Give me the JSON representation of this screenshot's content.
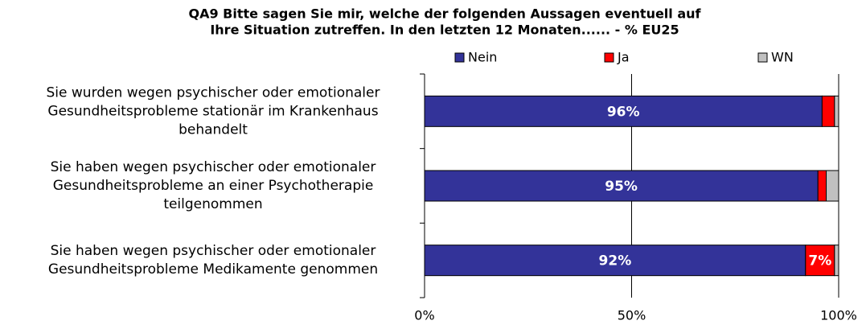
{
  "chart_data": {
    "type": "stacked_bar_horizontal_percent",
    "title": [
      "QA9 Bitte sagen Sie mir, welche der folgenden Aussagen eventuell auf",
      "Ihre Situation zutreffen. In den letzten 12 Monaten......  - % EU25"
    ],
    "categories": [
      [
        "Sie wurden wegen psychischer oder emotionaler",
        "Gesundheitsprobleme stationär im Krankenhaus",
        "behandelt"
      ],
      [
        "Sie haben wegen psychischer oder emotionaler",
        "Gesundheitsprobleme an einer Psychotherapie",
        "teilgenommen"
      ],
      [
        "Sie haben wegen psychischer oder emotionaler",
        "Gesundheitsprobleme Medikamente genommen"
      ]
    ],
    "series": [
      {
        "name": "Nein",
        "color": "#333399",
        "values": [
          96,
          95,
          92
        ],
        "value_labels": [
          "96%",
          "95%",
          "92%"
        ]
      },
      {
        "name": "Ja",
        "color": "#ff0000",
        "values": [
          3,
          2,
          7
        ],
        "value_labels": [
          null,
          null,
          "7%"
        ]
      },
      {
        "name": "WN",
        "color": "#c0c0c0",
        "values": [
          1,
          3,
          1
        ]
      }
    ],
    "xlim": [
      0,
      100
    ],
    "xticks": [
      {
        "value": 0,
        "label": "0%"
      },
      {
        "value": 50,
        "label": "50%"
      },
      {
        "value": 100,
        "label": "100%"
      }
    ],
    "grid": true,
    "legend": "top"
  }
}
